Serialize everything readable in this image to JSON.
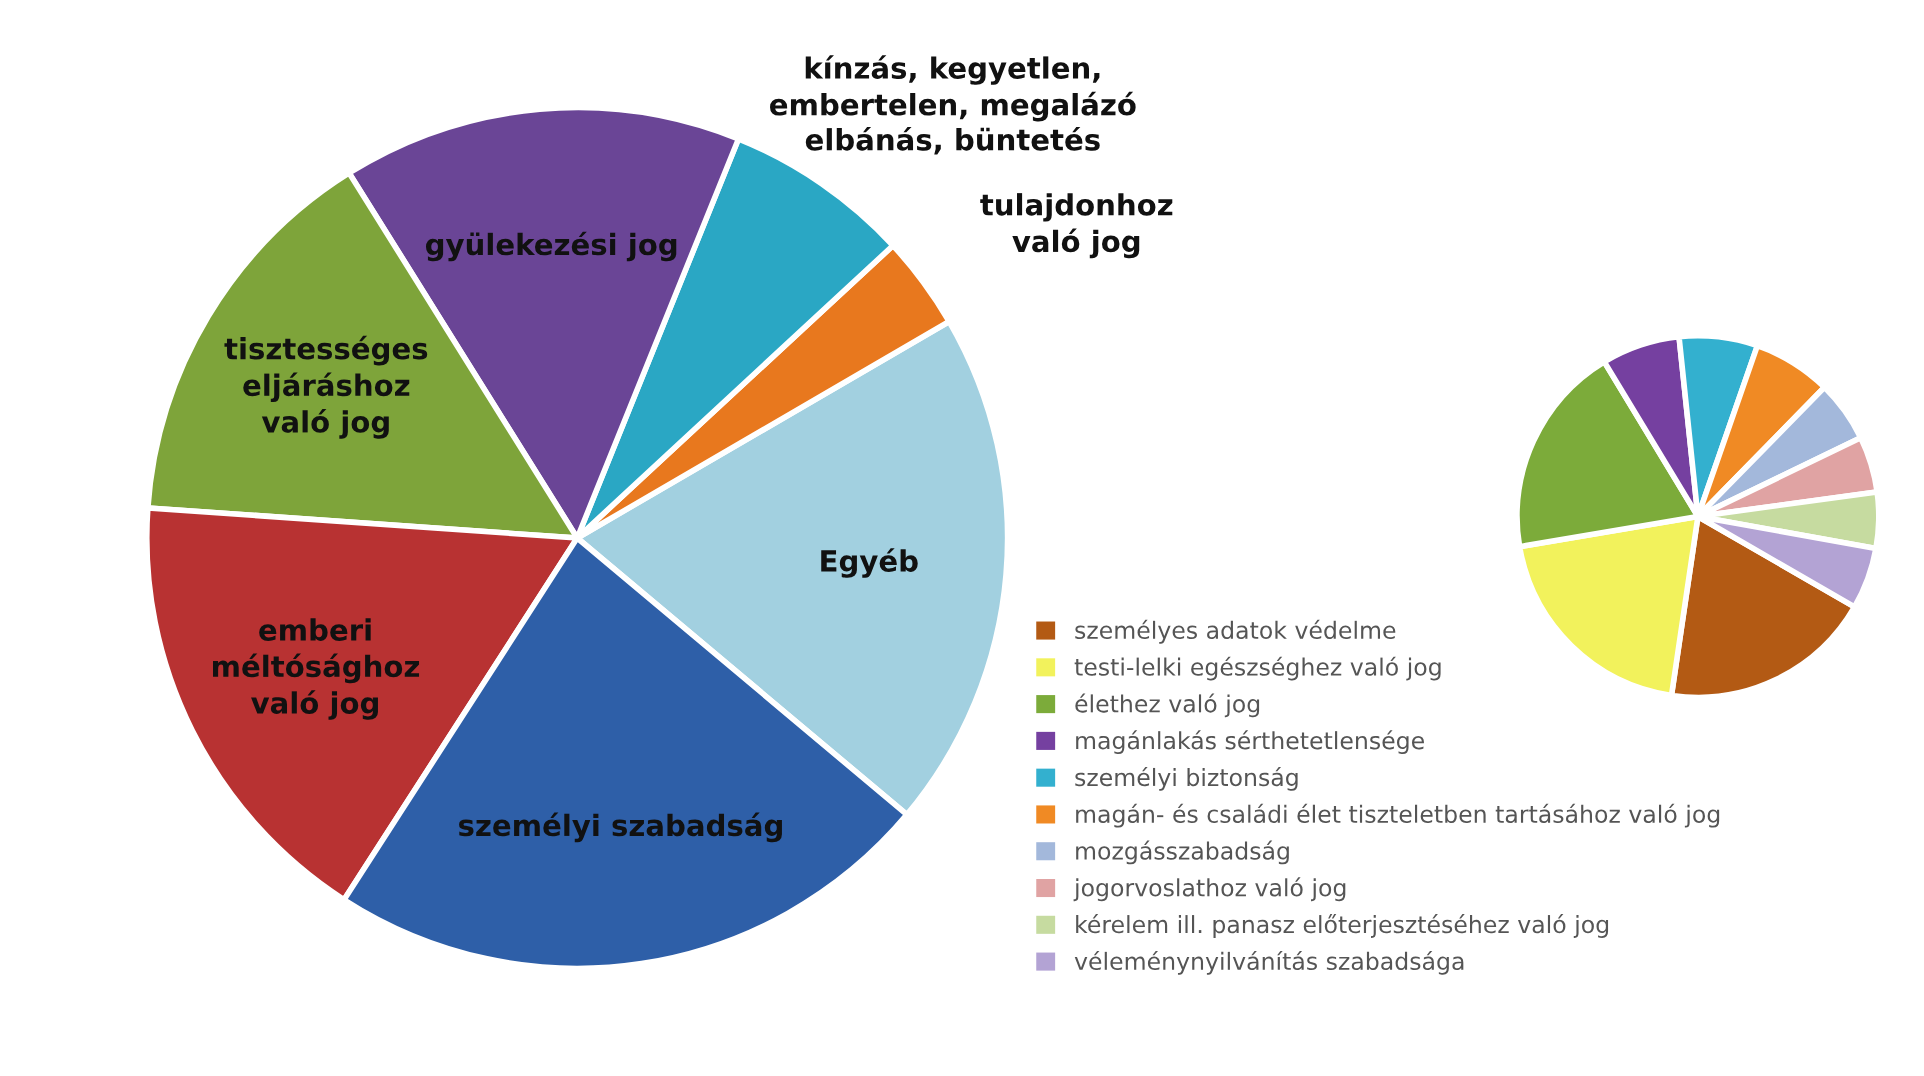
{
  "chart_data": [
    {
      "type": "pie",
      "categories": [
        "Egyéb",
        "tulajdonhoz\nvaló jog",
        "kínzás, kegyetlen,\nembertelen, megalázó\nelbánás, büntetés",
        "gyülekezési jog",
        "tisztességes\neljáráshoz\nvaló jog",
        "emberi\nméltósághoz\nvaló jog",
        "személyi szabadság"
      ],
      "values": [
        19.5,
        3.5,
        7,
        15,
        15,
        17,
        23
      ],
      "colors": [
        "#a2d0e0",
        "#e8781e",
        "#2aa7c4",
        "#6a4596",
        "#7ea43a",
        "#b83232",
        "#2e5fa8"
      ],
      "legend": false
    },
    {
      "type": "pie",
      "categories": [
        "személyes adatok védelme",
        "testi-lelki egészséghez való jog",
        "élethez való jog",
        "magánlakás sérthetetlensége",
        "személyi biztonság",
        "magán- és családi élet tiszteletben tartásához való jog",
        "mozgásszabadság",
        "jogorvoslathoz való jog",
        "kérelem ill. panasz előterjesztéséhez való jog",
        "véleménynyilvánítás szabadsága"
      ],
      "values": [
        19,
        20,
        19,
        7,
        7,
        7,
        5.5,
        5,
        5,
        5.5
      ],
      "colors": [
        "#b35a14",
        "#f2f25c",
        "#7cab3a",
        "#7540a0",
        "#33b0cf",
        "#f08a24",
        "#a3b8db",
        "#e0a3a3",
        "#c6dba0",
        "#b3a3d4"
      ],
      "legend": "bottom left"
    }
  ]
}
